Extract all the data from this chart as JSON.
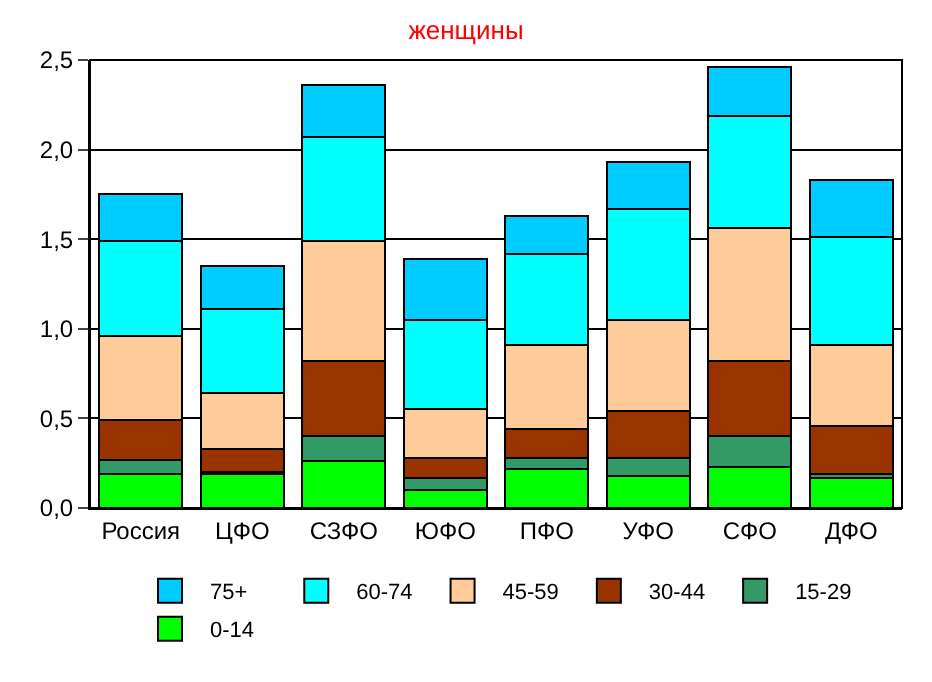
{
  "chart_data": {
    "type": "bar",
    "title": "женщины",
    "stacked": true,
    "categories": [
      "Россия",
      "ЦФО",
      "СЗФО",
      "ЮФО",
      "ПФО",
      "УФО",
      "СФО",
      "ДФО"
    ],
    "series": [
      {
        "name": "0-14",
        "color": "#00ff00",
        "values": [
          0.19,
          0.19,
          0.26,
          0.1,
          0.22,
          0.18,
          0.23,
          0.17
        ]
      },
      {
        "name": "15-29",
        "color": "#339966",
        "values": [
          0.08,
          0.01,
          0.14,
          0.07,
          0.06,
          0.1,
          0.17,
          0.02
        ]
      },
      {
        "name": "30-44",
        "color": "#993300",
        "values": [
          0.22,
          0.13,
          0.42,
          0.11,
          0.16,
          0.26,
          0.42,
          0.27
        ]
      },
      {
        "name": "45-59",
        "color": "#ffcc99",
        "values": [
          0.47,
          0.31,
          0.67,
          0.27,
          0.47,
          0.51,
          0.74,
          0.45
        ]
      },
      {
        "name": "60-74",
        "color": "#00ffff",
        "values": [
          0.53,
          0.47,
          0.58,
          0.5,
          0.51,
          0.62,
          0.63,
          0.6
        ]
      },
      {
        "name": "75+",
        "color": "#00ccff",
        "values": [
          0.26,
          0.24,
          0.29,
          0.34,
          0.21,
          0.26,
          0.27,
          0.32
        ]
      }
    ],
    "ylim": [
      0,
      2.5
    ],
    "yticks": [
      {
        "value": 0,
        "label": "0,0"
      },
      {
        "value": 0.5,
        "label": "0,5"
      },
      {
        "value": 1,
        "label": "1,0"
      },
      {
        "value": 1.5,
        "label": "1,5"
      },
      {
        "value": 2,
        "label": "2,0"
      },
      {
        "value": 2.5,
        "label": "2,5"
      }
    ],
    "grid": "y",
    "legend": "bottom"
  }
}
